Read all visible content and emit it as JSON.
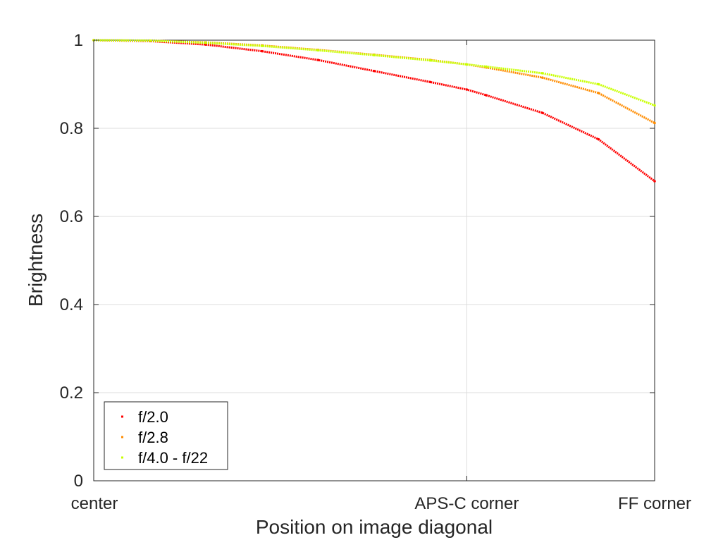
{
  "chart_data": {
    "type": "scatter",
    "title": "",
    "xlabel": "Position on image diagonal",
    "ylabel": "Brightness",
    "xlim": [
      0,
      1
    ],
    "ylim": [
      0,
      1
    ],
    "grid": true,
    "legend_position": "bottom-left",
    "x_ticks": [
      {
        "value": 0,
        "label": "center"
      },
      {
        "value": 0.665,
        "label": "APS-C corner"
      },
      {
        "value": 1,
        "label": "FF corner"
      }
    ],
    "y_ticks": [
      {
        "value": 0,
        "label": "0"
      },
      {
        "value": 0.2,
        "label": "0.2"
      },
      {
        "value": 0.4,
        "label": "0.4"
      },
      {
        "value": 0.6,
        "label": "0.6"
      },
      {
        "value": 0.8,
        "label": "0.8"
      },
      {
        "value": 1,
        "label": "1"
      }
    ],
    "x": [
      0,
      0.1,
      0.2,
      0.3,
      0.4,
      0.5,
      0.6,
      0.665,
      0.7,
      0.8,
      0.9,
      1.0
    ],
    "series": [
      {
        "name": "f/2.0",
        "color": "#ff0000",
        "values": [
          1.0,
          0.998,
          0.99,
          0.975,
          0.955,
          0.93,
          0.905,
          0.888,
          0.875,
          0.835,
          0.775,
          0.68
        ]
      },
      {
        "name": "f/2.8",
        "color": "#ff8c00",
        "values": [
          1.0,
          0.999,
          0.995,
          0.988,
          0.978,
          0.967,
          0.955,
          0.945,
          0.938,
          0.915,
          0.88,
          0.812
        ]
      },
      {
        "name": "f/4.0 - f/22",
        "color": "#c8ff00",
        "values": [
          1.0,
          0.999,
          0.994,
          0.987,
          0.977,
          0.966,
          0.954,
          0.945,
          0.94,
          0.925,
          0.9,
          0.852
        ]
      }
    ]
  }
}
